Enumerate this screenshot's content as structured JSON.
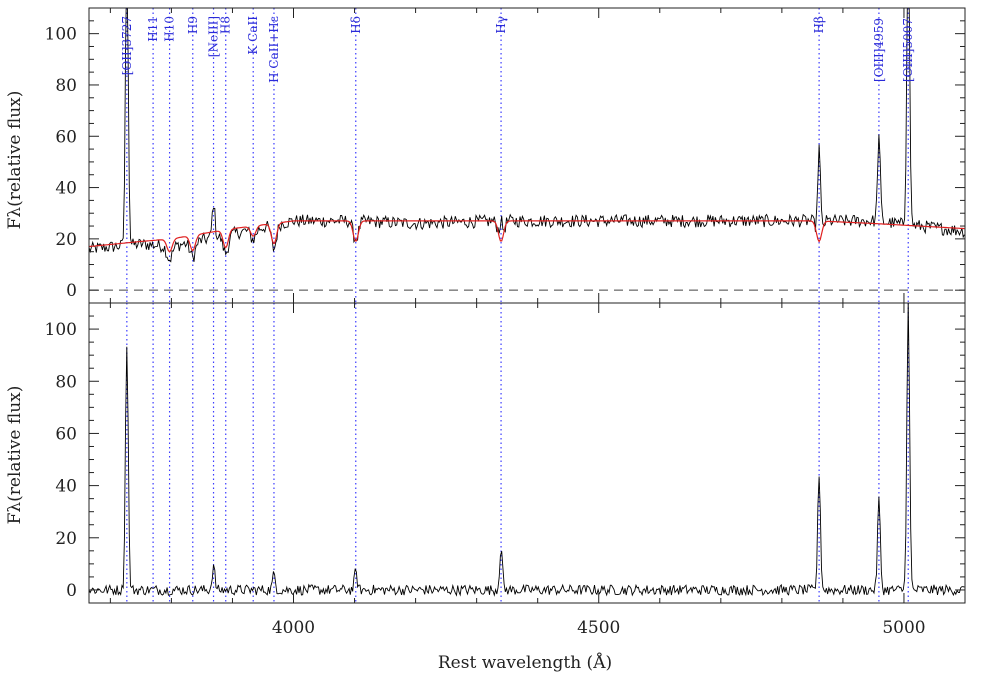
{
  "chart_data": {
    "type": "line",
    "xlabel": "Rest wavelength (Å)",
    "xlim": [
      3665,
      5100
    ],
    "x_ticks": [
      4000,
      4500,
      5000
    ],
    "panels": [
      {
        "ylabel": "Fλ(relative flux)",
        "ylim": [
          -5,
          110
        ],
        "y_ticks": [
          0,
          20,
          40,
          60,
          80,
          100
        ],
        "zero_dashed": true,
        "series": [
          {
            "color": "#000000",
            "role": "observed",
            "continuum": [
              [
                3665,
                16
              ],
              [
                3750,
                18
              ],
              [
                3800,
                17
              ],
              [
                3900,
                22
              ],
              [
                4000,
                27
              ],
              [
                4100,
                27
              ],
              [
                4200,
                26
              ],
              [
                4340,
                27
              ],
              [
                4500,
                27
              ],
              [
                4700,
                27
              ],
              [
                4860,
                27
              ],
              [
                4950,
                27
              ],
              [
                5100,
                23
              ]
            ],
            "noise": 2.5
          },
          {
            "color": "#e02020",
            "role": "model",
            "continuum": [
              [
                3665,
                17
              ],
              [
                3750,
                19
              ],
              [
                3800,
                20
              ],
              [
                3900,
                24
              ],
              [
                4000,
                27
              ],
              [
                4100,
                27
              ],
              [
                4200,
                27
              ],
              [
                4340,
                27
              ],
              [
                4500,
                27
              ],
              [
                4700,
                27
              ],
              [
                4860,
                27
              ],
              [
                4950,
                26
              ],
              [
                5100,
                24
              ]
            ],
            "noise": 0.3
          }
        ]
      },
      {
        "ylabel": "Fλ(relative flux)",
        "ylim": [
          -5,
          110
        ],
        "y_ticks": [
          0,
          20,
          40,
          60,
          80,
          100
        ],
        "zero_dashed": false,
        "series": [
          {
            "color": "#000000",
            "role": "residual",
            "continuum": [
              [
                3665,
                0
              ],
              [
                5100,
                0
              ]
            ],
            "noise": 2.0
          }
        ]
      }
    ],
    "emission_peaks": [
      {
        "x": 3727,
        "top_panel": 130,
        "bottom_panel": 95
      },
      {
        "x": 3869,
        "top_panel": 34,
        "bottom_panel": 9
      },
      {
        "x": 3968,
        "top_panel": 24,
        "bottom_panel": 6
      },
      {
        "x": 4102,
        "top_panel": 28,
        "bottom_panel": 7
      },
      {
        "x": 4340,
        "top_panel": 35,
        "bottom_panel": 16
      },
      {
        "x": 4861,
        "top_panel": 64,
        "bottom_panel": 45
      },
      {
        "x": 4959,
        "top_panel": 60,
        "bottom_panel": 35
      },
      {
        "x": 5007,
        "top_panel": 140,
        "bottom_panel": 110
      }
    ],
    "absorption_dips": [
      {
        "x": 3797,
        "depth": 5
      },
      {
        "x": 3835,
        "depth": 6
      },
      {
        "x": 3889,
        "depth": 7
      },
      {
        "x": 3934,
        "depth": 4
      },
      {
        "x": 3968,
        "depth": 8
      },
      {
        "x": 4102,
        "depth": 8
      },
      {
        "x": 4340,
        "depth": 8
      },
      {
        "x": 4861,
        "depth": 8
      }
    ],
    "lines": [
      {
        "x": 3727,
        "label": "[OII]3727",
        "drop": 0
      },
      {
        "x": 3770,
        "label": "H11",
        "drop": 0
      },
      {
        "x": 3797,
        "label": "H10",
        "drop": 0
      },
      {
        "x": 3835,
        "label": "H9",
        "drop": 0
      },
      {
        "x": 3869,
        "label": "[NeIII]",
        "drop": 0
      },
      {
        "x": 3889,
        "label": "H8",
        "drop": 0
      },
      {
        "x": 3934,
        "label": "K CaII",
        "drop": 0
      },
      {
        "x": 3968,
        "label": "H CaII+Hε",
        "drop": 0
      },
      {
        "x": 4102,
        "label": "Hδ",
        "drop": 0
      },
      {
        "x": 4340,
        "label": "Hγ",
        "drop": 0
      },
      {
        "x": 4861,
        "label": "Hβ",
        "drop": 0
      },
      {
        "x": 4959,
        "label": "[OIII]4959",
        "drop": 1
      },
      {
        "x": 5007,
        "label": "[OIII]5007",
        "drop": 1
      }
    ]
  }
}
